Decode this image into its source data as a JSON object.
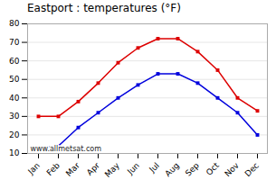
{
  "chart_data": {
    "type": "line",
    "title": "Eastport : temperatures (°F)",
    "categories": [
      "Jan",
      "Feb",
      "Mar",
      "Apr",
      "May",
      "Jun",
      "Jul",
      "Aug",
      "Sep",
      "Oct",
      "Nov",
      "Dec"
    ],
    "series": [
      {
        "color": "#dd0000",
        "marker": "square",
        "values": [
          30,
          30,
          38,
          48,
          59,
          67,
          72,
          72,
          65,
          55,
          40,
          33
        ]
      },
      {
        "color": "#0000dd",
        "marker": "square",
        "values": [
          13,
          14,
          24,
          32,
          40,
          47,
          53,
          53,
          48,
          40,
          32,
          20
        ]
      }
    ],
    "ylim": [
      10,
      80
    ],
    "yticks": [
      10,
      20,
      30,
      40,
      50,
      60,
      70,
      80
    ],
    "grid": true,
    "annotations": [
      "www.allmetsat.com"
    ]
  }
}
